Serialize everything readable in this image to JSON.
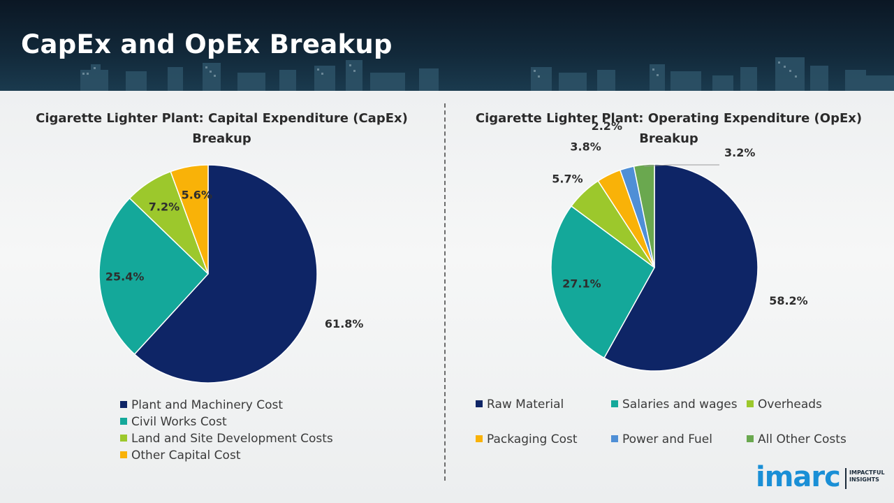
{
  "header": {
    "title": "CapEx and OpEx Breakup"
  },
  "chart_data": [
    {
      "type": "pie",
      "title": "Cigarette Lighter Plant: Capital Expenditure (CapEx) Breakup",
      "categories": [
        "Plant and Machinery Cost",
        "Civil Works Cost",
        "Land and Site Development Costs",
        "Other Capital Cost"
      ],
      "values": [
        61.8,
        25.4,
        7.2,
        5.6
      ],
      "labels": [
        "61.8%",
        "25.4%",
        "7.2%",
        "5.6%"
      ],
      "colors": [
        "#0e2566",
        "#14a89a",
        "#9cc82c",
        "#f9b208"
      ],
      "legend_position": "bottom"
    },
    {
      "type": "pie",
      "title": "Cigarette Lighter Plant: Operating Expenditure (OpEx) Breakup",
      "categories": [
        "Raw Material",
        "Salaries and wages",
        "Overheads",
        "Packaging Cost",
        "Power and Fuel",
        "All Other Costs"
      ],
      "values": [
        58.2,
        27.1,
        5.7,
        3.8,
        2.2,
        3.2
      ],
      "labels": [
        "58.2%",
        "27.1%",
        "5.7%",
        "3.8%",
        "2.2%",
        "3.2%"
      ],
      "colors": [
        "#0e2566",
        "#14a89a",
        "#9cc82c",
        "#f9b208",
        "#4f8fd6",
        "#6aa84f"
      ],
      "legend_position": "bottom"
    }
  ],
  "logo": {
    "brand": "imarc",
    "tagline_1": "IMPACTFUL",
    "tagline_2": "INSIGHTS"
  }
}
